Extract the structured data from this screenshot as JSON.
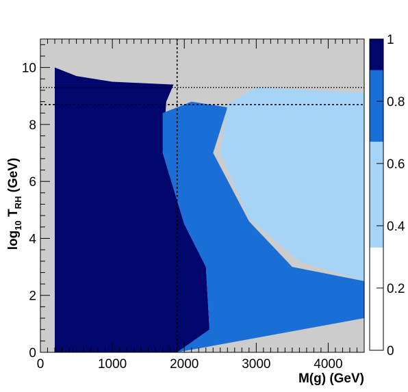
{
  "chart_data": {
    "type": "heatmap",
    "title": "",
    "xlabel": "M(g) (GeV)",
    "ylabel_main": "log",
    "ylabel_sub1": "10",
    "ylabel_mid": " T",
    "ylabel_sub2": "RH",
    "ylabel_end": " (GeV)",
    "xlim": [
      0,
      4500
    ],
    "ylim": [
      0,
      11
    ],
    "x_ticks": [
      0,
      1000,
      2000,
      3000,
      4000
    ],
    "y_ticks": [
      0,
      2,
      4,
      6,
      8,
      10
    ],
    "colorbar": {
      "range": [
        0,
        1
      ],
      "ticks": [
        0,
        0.2,
        0.4,
        0.6,
        0.8,
        1
      ],
      "levels": [
        {
          "from": 0.0,
          "to": 0.33,
          "color": "#ffffff"
        },
        {
          "from": 0.33,
          "to": 0.67,
          "color": "#a6d4f7"
        },
        {
          "from": 0.67,
          "to": 0.9,
          "color": "#1a6fd6"
        },
        {
          "from": 0.9,
          "to": 1.0,
          "color": "#00066b"
        }
      ]
    },
    "background_color": "#cccccc",
    "regions": [
      {
        "name": "fraction-1",
        "color": "#00066b",
        "approx_polygon_data": [
          [
            200,
            0
          ],
          [
            1900,
            0
          ],
          [
            2350,
            0.8
          ],
          [
            2300,
            3
          ],
          [
            2000,
            4.5
          ],
          [
            1700,
            7
          ],
          [
            1750,
            8.8
          ],
          [
            1850,
            9.4
          ],
          [
            1000,
            9.5
          ],
          [
            500,
            9.7
          ],
          [
            200,
            10
          ]
        ]
      },
      {
        "name": "fraction-0.8",
        "color": "#1a6fd6",
        "approx_polygon_data": [
          [
            1900,
            0
          ],
          [
            3200,
            0.6
          ],
          [
            4500,
            1.2
          ],
          [
            4500,
            2.5
          ],
          [
            3500,
            3
          ],
          [
            2900,
            4.6
          ],
          [
            2400,
            7
          ],
          [
            2600,
            8.6
          ],
          [
            2100,
            8.8
          ],
          [
            1700,
            8.4
          ],
          [
            1700,
            7
          ],
          [
            2000,
            4.5
          ],
          [
            2300,
            3
          ],
          [
            2350,
            0.8
          ]
        ]
      },
      {
        "name": "fraction-0.6",
        "color": "#a6d4f7",
        "approx_polygon_data": [
          [
            2600,
            8.7
          ],
          [
            2500,
            7
          ],
          [
            2900,
            4.7
          ],
          [
            3600,
            3.2
          ],
          [
            4500,
            2.5
          ],
          [
            4500,
            9.1
          ],
          [
            3000,
            9.3
          ]
        ]
      }
    ],
    "reference_lines": [
      {
        "orientation": "vertical",
        "x": 1900,
        "style": "dashed"
      },
      {
        "orientation": "horizontal",
        "y": 8.7,
        "style": "dashed"
      },
      {
        "orientation": "horizontal",
        "y": 9.3,
        "style": "dotted"
      }
    ]
  }
}
